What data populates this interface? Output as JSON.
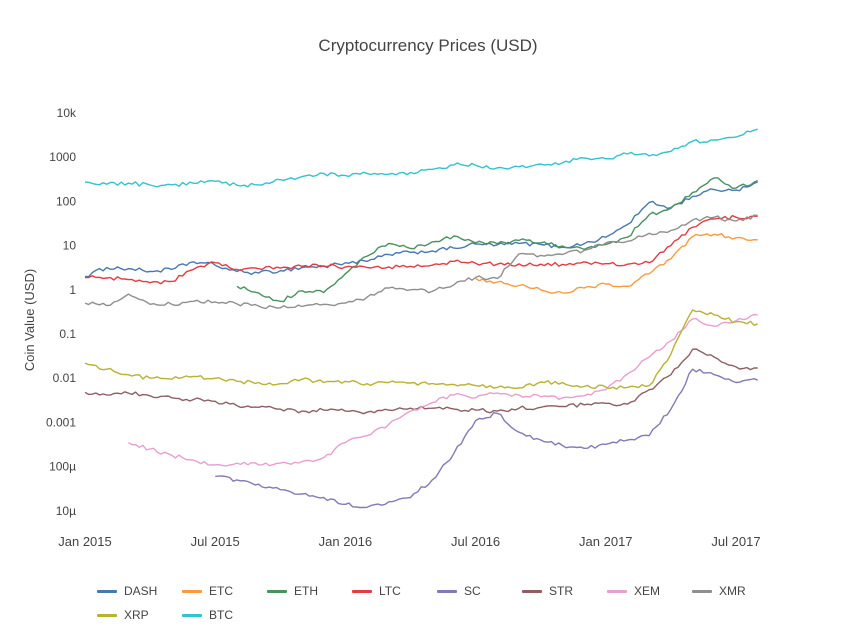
{
  "page": {
    "background": "#ffffff"
  },
  "chart_data": {
    "type": "line",
    "title": "Cryptocurrency Prices (USD)",
    "xlabel": "",
    "ylabel": "Coin Value (USD)",
    "y_scale": "log",
    "ylim": [
      1e-05,
      10000
    ],
    "grid": false,
    "legend_position": "bottom",
    "y_ticks": [
      {
        "label": "10k",
        "value": 10000
      },
      {
        "label": "1000",
        "value": 1000
      },
      {
        "label": "100",
        "value": 100
      },
      {
        "label": "10",
        "value": 10
      },
      {
        "label": "1",
        "value": 1
      },
      {
        "label": "0.1",
        "value": 0.1
      },
      {
        "label": "0.01",
        "value": 0.01
      },
      {
        "label": "0.001",
        "value": 0.001
      },
      {
        "label": "100µ",
        "value": 0.0001
      },
      {
        "label": "10µ",
        "value": 1e-05
      }
    ],
    "x_ticks": [
      {
        "label": "Jan 2015",
        "month_index": 0
      },
      {
        "label": "Jul 2015",
        "month_index": 6
      },
      {
        "label": "Jan 2016",
        "month_index": 12
      },
      {
        "label": "Jul 2016",
        "month_index": 18
      },
      {
        "label": "Jan 2017",
        "month_index": 24
      },
      {
        "label": "Jul 2017",
        "month_index": 30
      }
    ],
    "months": [
      "2015-01",
      "2015-02",
      "2015-03",
      "2015-04",
      "2015-05",
      "2015-06",
      "2015-07",
      "2015-08",
      "2015-09",
      "2015-10",
      "2015-11",
      "2015-12",
      "2016-01",
      "2016-02",
      "2016-03",
      "2016-04",
      "2016-05",
      "2016-06",
      "2016-07",
      "2016-08",
      "2016-09",
      "2016-10",
      "2016-11",
      "2016-12",
      "2017-01",
      "2017-02",
      "2017-03",
      "2017-04",
      "2017-05",
      "2017-06",
      "2017-07",
      "2017-08"
    ],
    "series": [
      {
        "name": "DASH",
        "color": "#4878b0",
        "values": [
          2.0,
          3.2,
          3.0,
          2.6,
          2.9,
          4.3,
          3.6,
          2.6,
          2.4,
          2.7,
          3.2,
          3.4,
          4.1,
          4.4,
          6.3,
          7.0,
          7.6,
          8.8,
          10.8,
          10.4,
          11.2,
          10.6,
          9.2,
          11.0,
          15.5,
          30,
          95,
          72,
          130,
          185,
          180,
          275
        ]
      },
      {
        "name": "ETC",
        "color": "#fa9a40",
        "values": [
          null,
          null,
          null,
          null,
          null,
          null,
          null,
          null,
          null,
          null,
          null,
          null,
          null,
          null,
          null,
          null,
          null,
          null,
          1.8,
          1.5,
          1.25,
          1.0,
          0.85,
          1.1,
          1.35,
          1.2,
          2.3,
          5.0,
          16,
          18,
          15,
          13.5
        ]
      },
      {
        "name": "ETH",
        "color": "#49915f",
        "values": [
          null,
          null,
          null,
          null,
          null,
          null,
          null,
          1.2,
          0.85,
          0.55,
          0.95,
          0.87,
          2.3,
          5.8,
          11.2,
          8.6,
          12.1,
          16.5,
          11.5,
          11.0,
          13.1,
          11.6,
          9.8,
          8.2,
          10.6,
          15.5,
          50,
          70,
          160,
          340,
          200,
          295
        ]
      },
      {
        "name": "LTC",
        "color": "#e23d44",
        "values": [
          1.9,
          1.85,
          1.7,
          1.45,
          1.55,
          2.9,
          4.1,
          2.9,
          3.0,
          3.1,
          3.4,
          3.5,
          3.3,
          3.2,
          3.3,
          3.4,
          3.6,
          4.4,
          4.0,
          3.8,
          3.85,
          3.8,
          3.75,
          4.3,
          3.9,
          3.8,
          4.1,
          10,
          26,
          40,
          44,
          46
        ]
      },
      {
        "name": "SC",
        "color": "#8678b8",
        "values": [
          null,
          null,
          null,
          null,
          null,
          null,
          6e-05,
          5e-05,
          4e-05,
          3e-05,
          2.4e-05,
          2e-05,
          1.4e-05,
          1.2e-05,
          1.6e-05,
          2e-05,
          5e-05,
          0.0002,
          0.0011,
          0.0016,
          0.0006,
          0.0004,
          0.0003,
          0.00026,
          0.00032,
          0.0004,
          0.0005,
          0.002,
          0.016,
          0.012,
          0.008,
          0.009
        ]
      },
      {
        "name": "STR",
        "color": "#8d5f63",
        "values": [
          0.0048,
          0.0042,
          0.0046,
          0.004,
          0.0036,
          0.0033,
          0.003,
          0.0024,
          0.0022,
          0.002,
          0.0018,
          0.0019,
          0.0018,
          0.0017,
          0.0019,
          0.0021,
          0.0021,
          0.002,
          0.0019,
          0.0018,
          0.0021,
          0.0022,
          0.0023,
          0.0025,
          0.0027,
          0.0026,
          0.0055,
          0.012,
          0.045,
          0.03,
          0.018,
          0.017
        ]
      },
      {
        "name": "XEM",
        "color": "#e79fd0",
        "values": [
          null,
          null,
          0.00035,
          0.00025,
          0.00018,
          0.00014,
          0.00011,
          0.00012,
          0.00011,
          0.00012,
          0.00013,
          0.00016,
          0.00035,
          0.0005,
          0.0009,
          0.0018,
          0.0028,
          0.0042,
          0.0036,
          0.0046,
          0.0042,
          0.0038,
          0.0036,
          0.004,
          0.0055,
          0.0125,
          0.03,
          0.07,
          0.22,
          0.15,
          0.2,
          0.27
        ]
      },
      {
        "name": "XMR",
        "color": "#8f8f8f",
        "values": [
          0.5,
          0.44,
          0.8,
          0.47,
          0.47,
          0.55,
          0.53,
          0.48,
          0.43,
          0.39,
          0.42,
          0.47,
          0.5,
          0.68,
          1.1,
          1.0,
          0.92,
          1.3,
          1.9,
          1.8,
          6.5,
          6.0,
          6.3,
          7.8,
          11.5,
          12.5,
          19,
          22,
          38,
          44,
          36,
          48
        ]
      },
      {
        "name": "XRP",
        "color": "#b8b231",
        "values": [
          0.022,
          0.016,
          0.012,
          0.01,
          0.0095,
          0.011,
          0.01,
          0.0085,
          0.008,
          0.0075,
          0.0095,
          0.008,
          0.0085,
          0.0075,
          0.008,
          0.0078,
          0.0076,
          0.0072,
          0.0068,
          0.0062,
          0.006,
          0.0082,
          0.008,
          0.0065,
          0.0063,
          0.0062,
          0.0068,
          0.035,
          0.35,
          0.27,
          0.19,
          0.17
        ]
      },
      {
        "name": "BTC",
        "color": "#33c3cd",
        "values": [
          275,
          245,
          260,
          235,
          237,
          258,
          285,
          232,
          236,
          310,
          365,
          430,
          385,
          430,
          415,
          450,
          530,
          670,
          655,
          575,
          608,
          700,
          742,
          960,
          920,
          1180,
          1070,
          1350,
          2300,
          2450,
          2850,
          4300
        ]
      }
    ]
  }
}
